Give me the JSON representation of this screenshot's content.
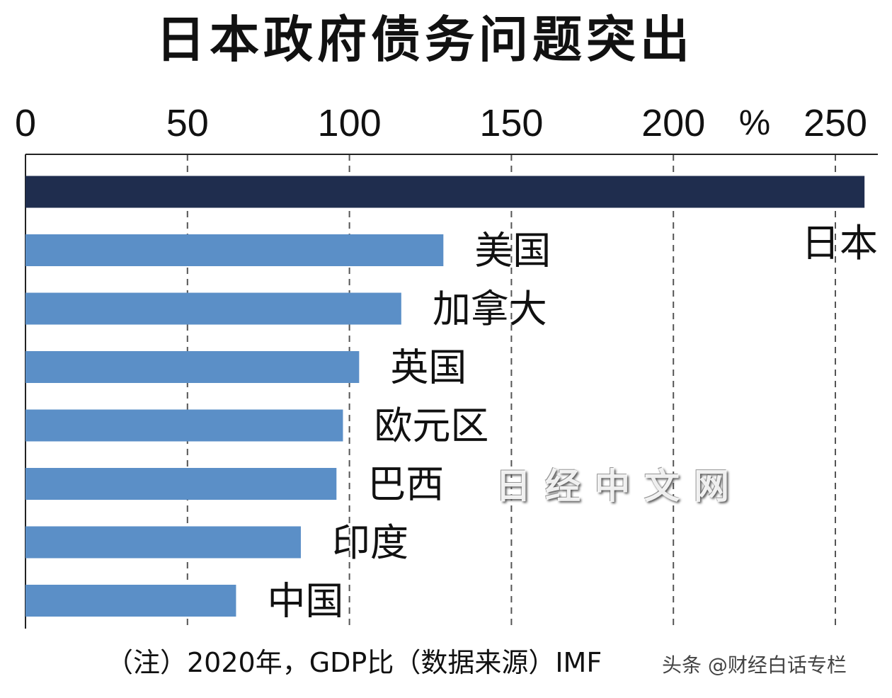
{
  "chart_data": {
    "type": "bar",
    "orientation": "horizontal",
    "title": "日本政府债务问题突出",
    "unit": "%",
    "xlim": [
      0,
      260
    ],
    "ticks": [
      0,
      50,
      100,
      150,
      200,
      250
    ],
    "categories": [
      "日本",
      "美国",
      "加拿大",
      "英国",
      "欧元区",
      "巴西",
      "印度",
      "中国"
    ],
    "values": [
      259,
      129,
      116,
      103,
      98,
      96,
      85,
      65
    ],
    "colors": {
      "highlight": "#1f2d4e",
      "default": "#5b8fc7"
    },
    "grid": "vertical dashed",
    "note": "（注）2020年，GDP比（数据来源）IMF"
  },
  "watermark": {
    "source": "头条 @财经白话专栏",
    "logo": "日经中文网"
  }
}
